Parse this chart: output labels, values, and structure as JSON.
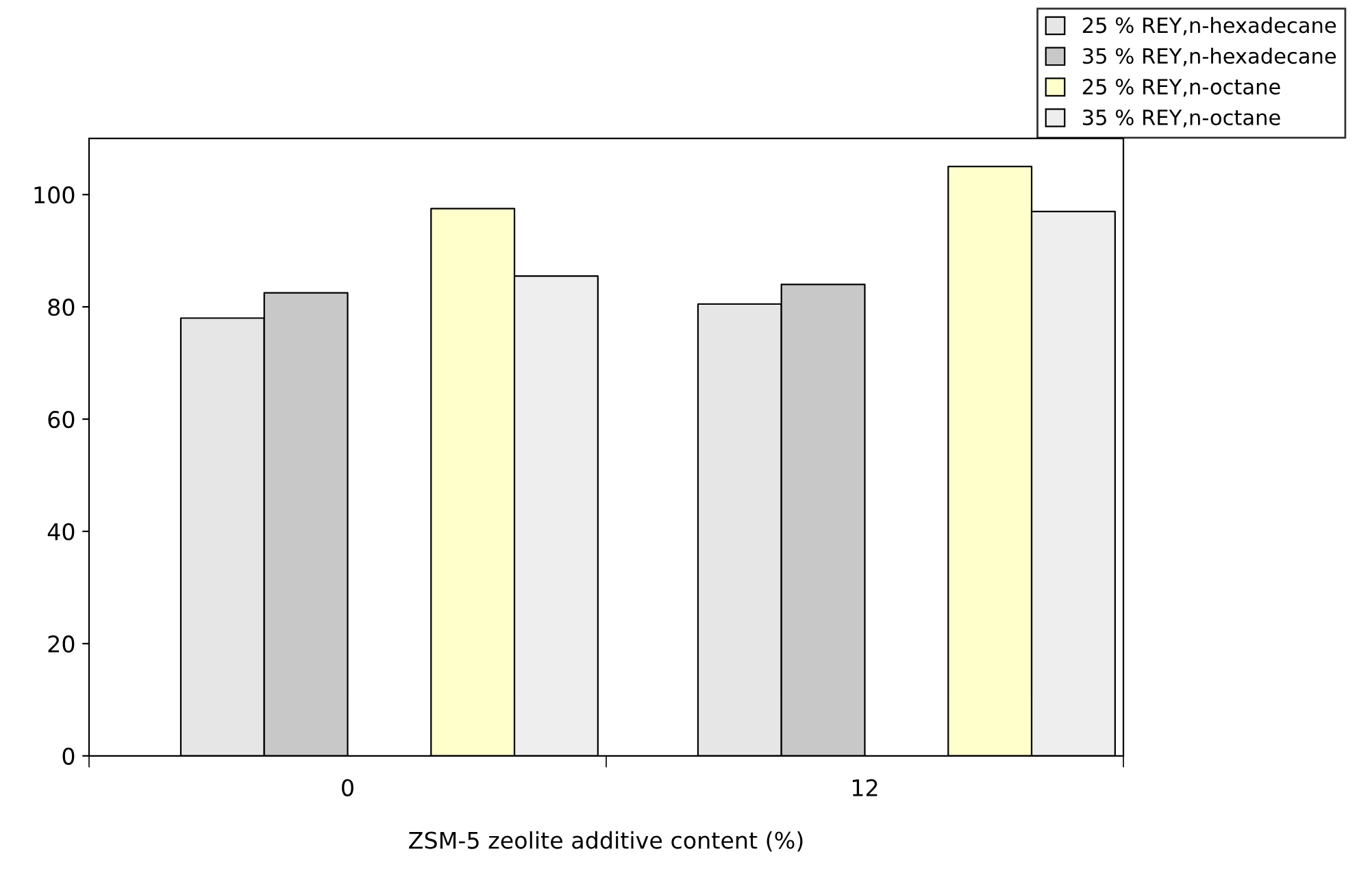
{
  "chart_data": {
    "type": "bar",
    "xlabel": "ZSM-5 zeolite additive content (%)",
    "categories": [
      "0",
      "12"
    ],
    "series": [
      {
        "name": "25 % REY,n-hexadecane",
        "color": "#e6e6e6",
        "values": [
          78,
          80.5
        ]
      },
      {
        "name": "35 % REY,n-hexadecane",
        "color": "#c8c8c8",
        "values": [
          82.5,
          84
        ]
      },
      {
        "name": "25 % REY,n-octane",
        "color": "#ffffcc",
        "values": [
          97.5,
          105
        ]
      },
      {
        "name": "35 % REY,n-octane",
        "color": "#eeeeee",
        "values": [
          85.5,
          97
        ]
      }
    ],
    "ylim": [
      0,
      110
    ],
    "yticks": [
      0,
      20,
      40,
      60,
      80,
      100
    ],
    "grid": false,
    "legend": "top right"
  }
}
